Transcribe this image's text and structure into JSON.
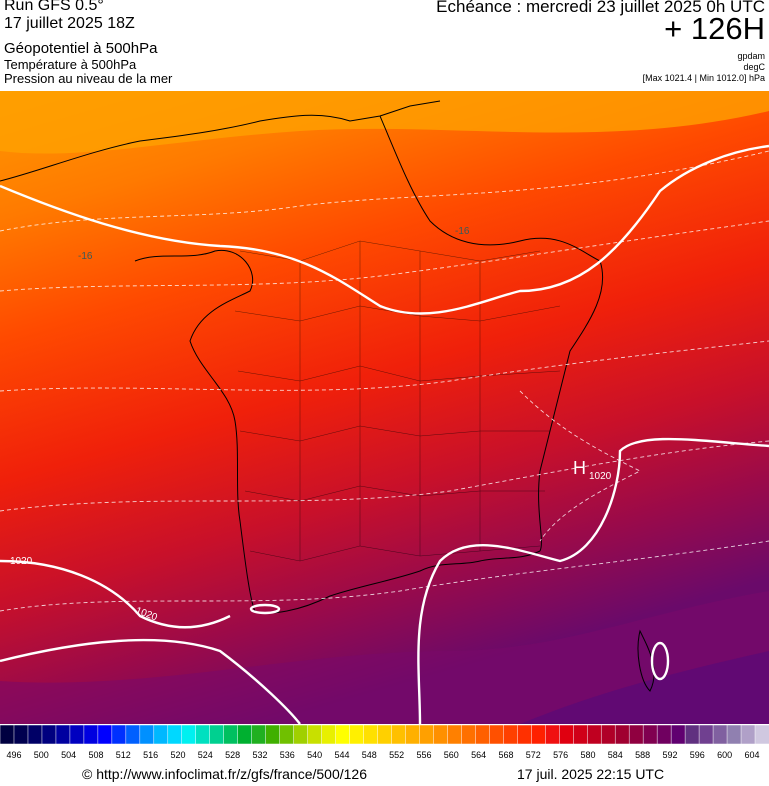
{
  "header": {
    "run": "Run GFS 0.5°",
    "run_date": "17 juillet 2025 18Z",
    "layer_main": "Géopotentiel à 500hPa",
    "layer_temp": "Température à 500hPa",
    "layer_pressure": "Pression au niveau de la mer",
    "echeance": "Echéance : mercredi 23 juillet 2025 0h UTC",
    "horizon": "+ 126H",
    "unit_geopotential": "gpdam",
    "unit_temperature": "degC",
    "pressure_range": "[Max 1021.4 | Min 1012.0] hPa"
  },
  "map": {
    "labels": {
      "iso_16": "-16",
      "iso_16b": "-16",
      "iso_1020_a": "1020",
      "iso_1020_b": "1020",
      "high_letter": "H",
      "high_value": "1020"
    }
  },
  "scale": {
    "ticks": [
      "496",
      "500",
      "504",
      "508",
      "512",
      "516",
      "520",
      "524",
      "528",
      "532",
      "536",
      "540",
      "544",
      "548",
      "552",
      "556",
      "560",
      "564",
      "568",
      "572",
      "576",
      "580",
      "584",
      "588",
      "592",
      "596",
      "600",
      "604"
    ],
    "colors": [
      "#000040",
      "#00004f",
      "#000066",
      "#00007f",
      "#0000a0",
      "#0000c0",
      "#0000e0",
      "#0000ff",
      "#0030ff",
      "#0060ff",
      "#0090ff",
      "#00b8ff",
      "#00d8ff",
      "#00f0f0",
      "#00e0c0",
      "#00d090",
      "#00c060",
      "#00b030",
      "#20b020",
      "#40b000",
      "#70c000",
      "#a0d000",
      "#c8e000",
      "#e8f000",
      "#ffff00",
      "#fff000",
      "#ffe000",
      "#ffd000",
      "#ffc000",
      "#ffb000",
      "#ffa000",
      "#ff9000",
      "#ff8000",
      "#ff7000",
      "#ff6000",
      "#ff5000",
      "#ff4000",
      "#ff3000",
      "#ff2000",
      "#f01010",
      "#e00010",
      "#d00018",
      "#c00020",
      "#b00028",
      "#a00030",
      "#900040",
      "#800050",
      "#700060",
      "#600070",
      "#603080",
      "#704090",
      "#8060a0",
      "#9080b0",
      "#b0a0c8",
      "#d0c8e0"
    ]
  },
  "footer": {
    "url": "© http://www.infoclimat.fr/z/gfs/france/500/126",
    "time": "17 juil. 2025 22:15 UTC"
  }
}
